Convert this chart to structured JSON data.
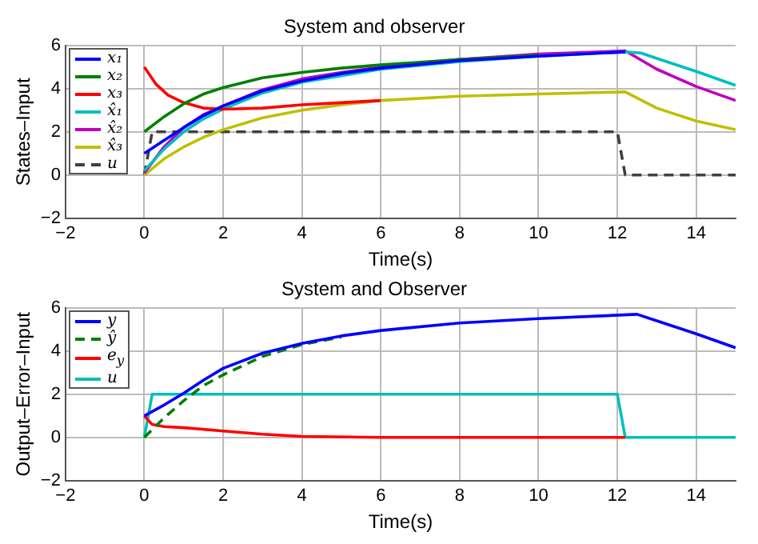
{
  "chart_data": [
    {
      "type": "line",
      "title": "System and observer",
      "xlabel": "Time(s)",
      "ylabel": "States–Input",
      "xlim": [
        -2,
        15
      ],
      "xticks": [
        -2,
        0,
        2,
        4,
        6,
        8,
        10,
        12,
        14
      ],
      "ylim": [
        -2,
        6
      ],
      "yticks": [
        -2,
        0,
        2,
        4,
        6
      ],
      "grid": true,
      "legend": "top left",
      "series": [
        {
          "name": "x₁",
          "color": "#0000ff",
          "x": [
            0,
            0.5,
            1,
            1.5,
            2,
            3,
            4,
            5,
            6,
            8,
            10,
            12.2
          ],
          "values": [
            1,
            1.6,
            2.2,
            2.75,
            3.2,
            3.9,
            4.35,
            4.7,
            4.95,
            5.3,
            5.5,
            5.7
          ]
        },
        {
          "name": "x₂",
          "color": "#007f00",
          "x": [
            0,
            0.5,
            1,
            1.5,
            2,
            3,
            4,
            5,
            6,
            8,
            10
          ],
          "values": [
            2,
            2.7,
            3.3,
            3.75,
            4.05,
            4.5,
            4.75,
            4.95,
            5.1,
            5.35,
            5.55
          ]
        },
        {
          "name": "x₃",
          "color": "#ff0000",
          "x": [
            0,
            0.3,
            0.6,
            1,
            1.5,
            2,
            3,
            4,
            5,
            6
          ],
          "values": [
            5,
            4.2,
            3.7,
            3.35,
            3.1,
            3.05,
            3.1,
            3.25,
            3.35,
            3.45
          ]
        },
        {
          "name": "x̂₁",
          "color": "#00bfbf",
          "x": [
            0,
            0.5,
            1,
            1.5,
            2,
            3,
            4,
            5,
            6,
            8,
            10,
            12.2,
            12.6,
            13,
            14,
            15
          ],
          "values": [
            0.2,
            1.2,
            2,
            2.6,
            3.05,
            3.8,
            4.3,
            4.6,
            4.9,
            5.25,
            5.5,
            5.7,
            5.65,
            5.4,
            4.8,
            4.15
          ]
        },
        {
          "name": "x̂₂",
          "color": "#bf00bf",
          "x": [
            0,
            0.5,
            1,
            1.5,
            2,
            3,
            4,
            5,
            6,
            8,
            10,
            12.2,
            13,
            14,
            15
          ],
          "values": [
            0.1,
            1.3,
            2.2,
            2.8,
            3.2,
            3.95,
            4.45,
            4.75,
            5,
            5.35,
            5.6,
            5.75,
            4.9,
            4.1,
            3.45
          ]
        },
        {
          "name": "x̂₃",
          "color": "#bfbf00",
          "x": [
            0,
            0.5,
            1,
            1.5,
            2,
            3,
            4,
            5,
            6,
            8,
            10,
            12.2,
            13,
            14,
            15
          ],
          "values": [
            0,
            0.75,
            1.3,
            1.75,
            2.1,
            2.65,
            3,
            3.25,
            3.45,
            3.65,
            3.75,
            3.85,
            3.1,
            2.5,
            2.1
          ]
        },
        {
          "name": "u",
          "color": "#404040",
          "line_style": "dashed",
          "x": [
            0,
            0.2,
            12,
            12.2,
            15
          ],
          "values": [
            0,
            2,
            2,
            0,
            0
          ]
        }
      ]
    },
    {
      "type": "line",
      "title": "System and Observer",
      "xlabel": "Time(s)",
      "ylabel": "Output–Error–Input",
      "xlim": [
        -2,
        15
      ],
      "xticks": [
        -2,
        0,
        2,
        4,
        6,
        8,
        10,
        12,
        14
      ],
      "ylim": [
        -2,
        6
      ],
      "yticks": [
        -2,
        0,
        2,
        4,
        6
      ],
      "grid": true,
      "legend": "top left",
      "series": [
        {
          "name": "y",
          "color": "#0000ff",
          "x": [
            0,
            0.5,
            1,
            1.5,
            2,
            3,
            4,
            5,
            6,
            8,
            10,
            12.5,
            13,
            14,
            15
          ],
          "values": [
            1,
            1.5,
            2.05,
            2.65,
            3.2,
            3.9,
            4.35,
            4.7,
            4.95,
            5.3,
            5.5,
            5.7,
            5.4,
            4.8,
            4.15
          ]
        },
        {
          "name": "ŷ",
          "color": "#007f00",
          "line_style": "dashed",
          "x": [
            0,
            0.5,
            1,
            1.5,
            2,
            3,
            4,
            5
          ],
          "values": [
            0,
            0.9,
            1.7,
            2.4,
            2.9,
            3.75,
            4.3,
            4.65
          ]
        },
        {
          "name": "e$_{y}$",
          "color": "#ff0000",
          "x": [
            0,
            0.2,
            0.5,
            1,
            2,
            3,
            4,
            6,
            12.2
          ],
          "values": [
            1,
            0.6,
            0.5,
            0.45,
            0.3,
            0.15,
            0.05,
            0,
            0
          ]
        },
        {
          "name": "u",
          "color": "#00bfbf",
          "x": [
            0,
            0.2,
            12,
            12.2,
            15
          ],
          "values": [
            0,
            2,
            2,
            0,
            0
          ]
        }
      ]
    }
  ]
}
